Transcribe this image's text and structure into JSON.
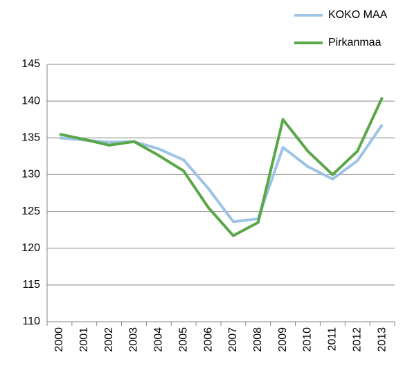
{
  "chart_data": {
    "type": "line",
    "categories": [
      "2000",
      "2001",
      "2002",
      "2003",
      "2004",
      "2005",
      "2006",
      "2007",
      "2008",
      "2009",
      "2010",
      "2011",
      "2012",
      "2013"
    ],
    "series": [
      {
        "name": "KOKO MAA",
        "color": "#9dc3e6",
        "values": [
          135.0,
          134.7,
          134.4,
          134.5,
          133.5,
          132.0,
          128.1,
          123.6,
          124.0,
          133.7,
          131.1,
          129.4,
          131.9,
          136.8
        ]
      },
      {
        "name": "Pirkanmaa",
        "color": "#5aa747",
        "values": [
          135.5,
          134.8,
          134.0,
          134.5,
          132.6,
          130.5,
          125.5,
          121.7,
          123.5,
          137.5,
          133.2,
          130.0,
          133.2,
          140.5
        ]
      }
    ],
    "ylim": [
      110,
      145
    ],
    "yticks": [
      110,
      115,
      120,
      125,
      130,
      135,
      140,
      145
    ],
    "grid": true,
    "legend": "top-right"
  }
}
